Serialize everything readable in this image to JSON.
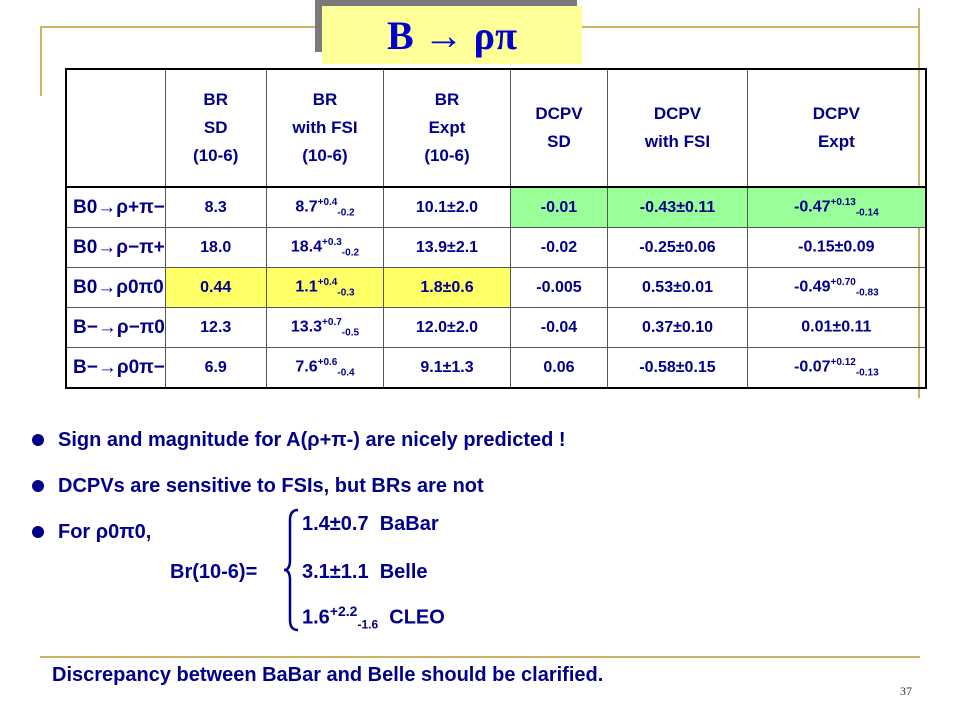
{
  "title": "B → ρπ",
  "header": [
    {
      "lines": [
        "BR",
        "SD",
        "(10-6)"
      ]
    },
    {
      "lines": [
        "BR",
        "with FSI",
        "(10-6)"
      ]
    },
    {
      "lines": [
        "BR",
        "Expt",
        "(10-6)"
      ]
    },
    {
      "lines": [
        "DCPV",
        "SD",
        ""
      ]
    },
    {
      "lines": [
        "DCPV",
        "with FSI",
        ""
      ]
    },
    {
      "lines": [
        "DCPV",
        "Expt",
        ""
      ]
    }
  ],
  "rows": [
    {
      "process": "B0→ρ+π−",
      "br_sd": "8.3",
      "br_fsi": "8.7",
      "br_fsi_up": "+0.4",
      "br_fsi_dn": "-0.2",
      "br_expt": "10.1±2.0",
      "dcpv_sd": "-0.01",
      "dcpv_fsi": "-0.43±0.11",
      "dcpv_expt": "-0.47",
      "dcpv_expt_up": "+0.13",
      "dcpv_expt_dn": "-0.14"
    },
    {
      "process": "B0→ρ−π+",
      "br_sd": "18.0",
      "br_fsi": "18.4",
      "br_fsi_up": "+0.3",
      "br_fsi_dn": "-0.2",
      "br_expt": "13.9±2.1",
      "dcpv_sd": "-0.02",
      "dcpv_fsi": "-0.25±0.06",
      "dcpv_expt": "-0.15±0.09",
      "dcpv_expt_up": "",
      "dcpv_expt_dn": ""
    },
    {
      "process": "B0→ρ0π0",
      "br_sd": "0.44",
      "br_fsi": "1.1",
      "br_fsi_up": "+0.4",
      "br_fsi_dn": "-0.3",
      "br_expt": "1.8±0.6",
      "dcpv_sd": "-0.005",
      "dcpv_fsi": "0.53±0.01",
      "dcpv_expt": "-0.49",
      "dcpv_expt_up": "+0.70",
      "dcpv_expt_dn": "-0.83"
    },
    {
      "process": "B−→ρ−π0",
      "br_sd": "12.3",
      "br_fsi": "13.3",
      "br_fsi_up": "+0.7",
      "br_fsi_dn": "-0.5",
      "br_expt": "12.0±2.0",
      "dcpv_sd": "-0.04",
      "dcpv_fsi": "0.37±0.10",
      "dcpv_expt": "0.01±0.11",
      "dcpv_expt_up": "",
      "dcpv_expt_dn": ""
    },
    {
      "process": "B−→ρ0π−",
      "br_sd": "6.9",
      "br_fsi": "7.6",
      "br_fsi_up": "+0.6",
      "br_fsi_dn": "-0.4",
      "br_expt": "9.1±1.3",
      "dcpv_sd": "0.06",
      "dcpv_fsi": "-0.58±0.15",
      "dcpv_expt": "-0.07",
      "dcpv_expt_up": "+0.12",
      "dcpv_expt_dn": "-0.13"
    }
  ],
  "highlight_colors": {
    "green": "#99ff99",
    "yellow": "#ffff66"
  },
  "bullets": [
    "Sign and magnitude for A(ρ+π-) are nicely predicted !",
    "DCPVs are sensitive to FSIs, but BRs are not",
    "For ρ0π0,"
  ],
  "br_label": "Br(10-6)=",
  "experiments": [
    {
      "value": "1.4±0.7",
      "value_up": "",
      "value_dn": "",
      "name": "BaBar"
    },
    {
      "value": "3.1±1.1",
      "value_up": "",
      "value_dn": "",
      "name": "Belle"
    },
    {
      "value": "1.6",
      "value_up": "+2.2",
      "value_dn": "-1.6",
      "name": "CLEO"
    }
  ],
  "footer": "Discrepancy between BaBar and Belle should be clarified.",
  "slide_number": "37"
}
